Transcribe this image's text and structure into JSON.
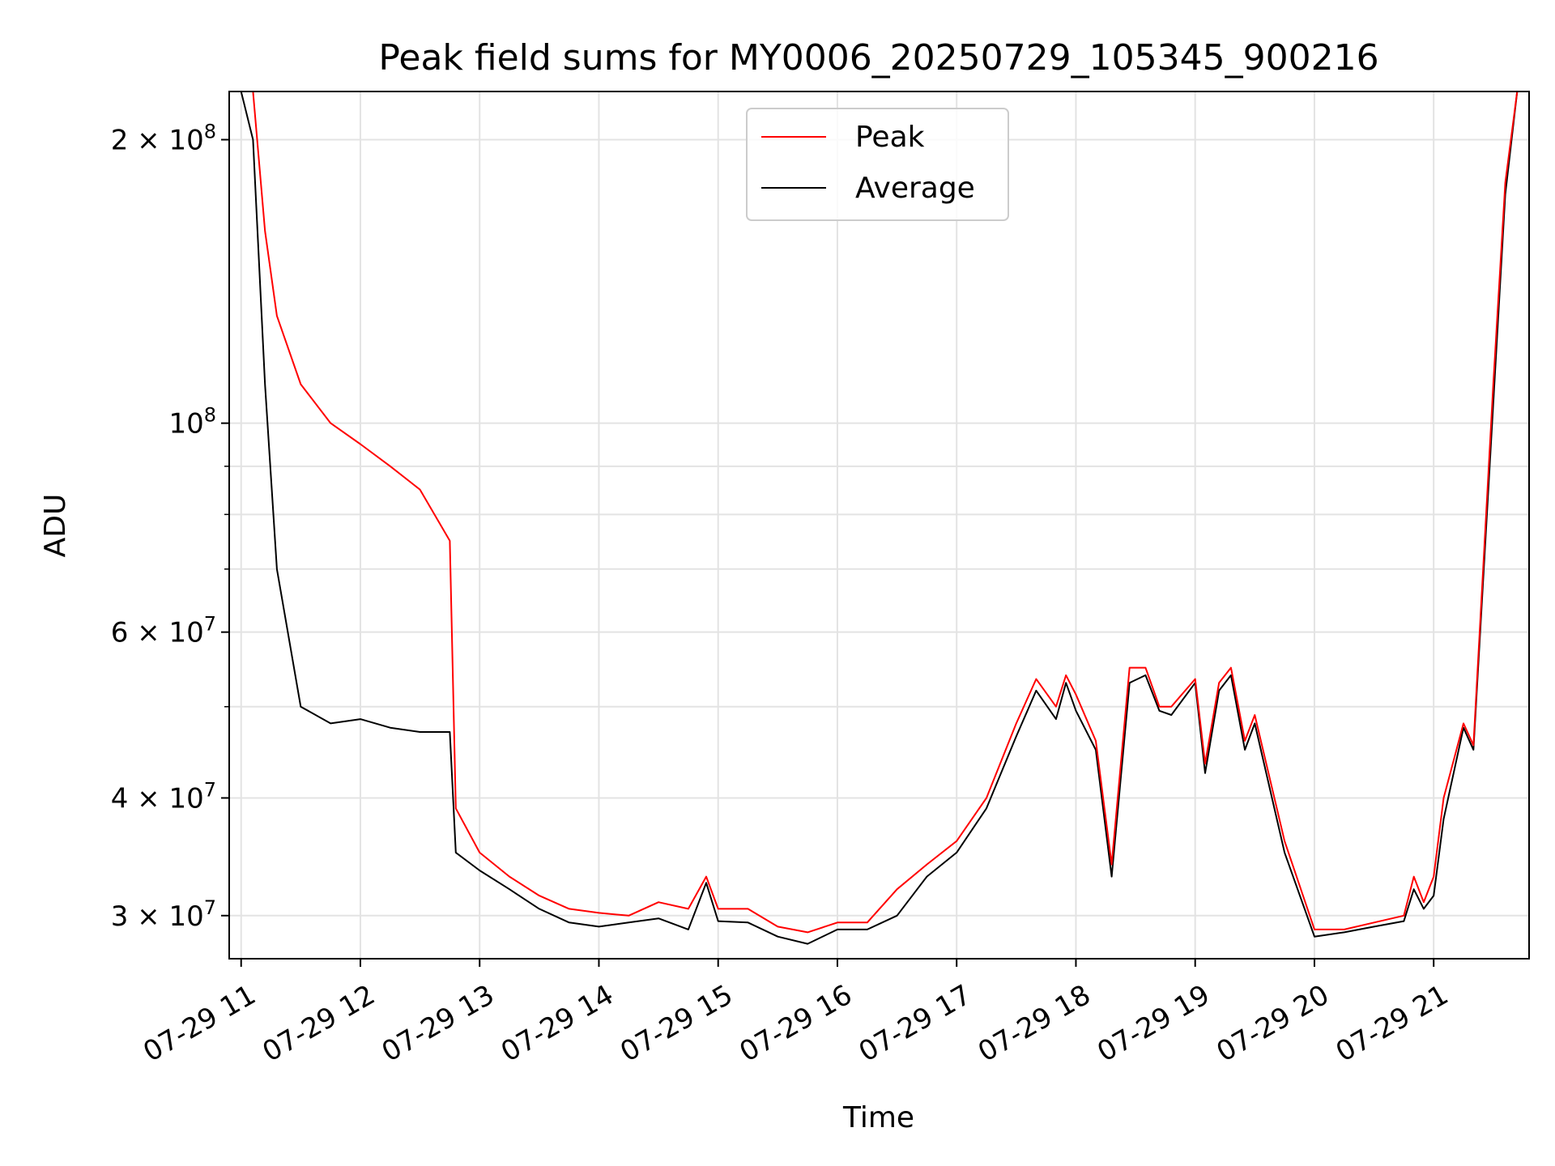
{
  "chart_data": {
    "type": "line",
    "title": "Peak field sums for MY0006_20250729_105345_900216",
    "xlabel": "Time",
    "ylabel": "ADU",
    "yscale": "log",
    "xlim": [
      "2025-07-29 10:54",
      "2025-07-29 21:48"
    ],
    "ylim": [
      27000000,
      225000000
    ],
    "grid": true,
    "legend_position": "top-center",
    "x_ticks": [
      {
        "time": "2025-07-29 11:00",
        "label": "07-29 11"
      },
      {
        "time": "2025-07-29 12:00",
        "label": "07-29 12"
      },
      {
        "time": "2025-07-29 13:00",
        "label": "07-29 13"
      },
      {
        "time": "2025-07-29 14:00",
        "label": "07-29 14"
      },
      {
        "time": "2025-07-29 15:00",
        "label": "07-29 15"
      },
      {
        "time": "2025-07-29 16:00",
        "label": "07-29 16"
      },
      {
        "time": "2025-07-29 17:00",
        "label": "07-29 17"
      },
      {
        "time": "2025-07-29 18:00",
        "label": "07-29 18"
      },
      {
        "time": "2025-07-29 19:00",
        "label": "07-29 19"
      },
      {
        "time": "2025-07-29 20:00",
        "label": "07-29 20"
      },
      {
        "time": "2025-07-29 21:00",
        "label": "07-29 21"
      }
    ],
    "y_ticks": [
      {
        "value": 30000000,
        "label_mantissa": "3 × 10",
        "label_exp": "7"
      },
      {
        "value": 40000000,
        "label_mantissa": "4 × 10",
        "label_exp": "7"
      },
      {
        "value": 60000000,
        "label_mantissa": "6 × 10",
        "label_exp": "7"
      },
      {
        "value": 100000000,
        "label_mantissa": "10",
        "label_exp": "8"
      },
      {
        "value": 200000000,
        "label_mantissa": "2 × 10",
        "label_exp": "8"
      }
    ],
    "y_minor_ticks": [
      50000000,
      70000000,
      80000000,
      90000000
    ],
    "series": [
      {
        "name": "Peak",
        "color": "#ff0000",
        "x": [
          "2025-07-29 10:54",
          "2025-07-29 11:00",
          "2025-07-29 11:06",
          "2025-07-29 11:12",
          "2025-07-29 11:18",
          "2025-07-29 11:30",
          "2025-07-29 11:45",
          "2025-07-29 12:00",
          "2025-07-29 12:15",
          "2025-07-29 12:30",
          "2025-07-29 12:45",
          "2025-07-29 12:48",
          "2025-07-29 13:00",
          "2025-07-29 13:15",
          "2025-07-29 13:30",
          "2025-07-29 13:45",
          "2025-07-29 14:00",
          "2025-07-29 14:15",
          "2025-07-29 14:30",
          "2025-07-29 14:45",
          "2025-07-29 14:54",
          "2025-07-29 15:00",
          "2025-07-29 15:15",
          "2025-07-29 15:30",
          "2025-07-29 15:45",
          "2025-07-29 16:00",
          "2025-07-29 16:15",
          "2025-07-29 16:30",
          "2025-07-29 16:45",
          "2025-07-29 17:00",
          "2025-07-29 17:15",
          "2025-07-29 17:30",
          "2025-07-29 17:40",
          "2025-07-29 17:50",
          "2025-07-29 17:55",
          "2025-07-29 18:00",
          "2025-07-29 18:10",
          "2025-07-29 18:18",
          "2025-07-29 18:27",
          "2025-07-29 18:35",
          "2025-07-29 18:42",
          "2025-07-29 18:48",
          "2025-07-29 19:00",
          "2025-07-29 19:05",
          "2025-07-29 19:12",
          "2025-07-29 19:18",
          "2025-07-29 19:25",
          "2025-07-29 19:30",
          "2025-07-29 19:45",
          "2025-07-29 20:00",
          "2025-07-29 20:15",
          "2025-07-29 20:30",
          "2025-07-29 20:45",
          "2025-07-29 20:50",
          "2025-07-29 20:55",
          "2025-07-29 21:00",
          "2025-07-29 21:05",
          "2025-07-29 21:15",
          "2025-07-29 21:20",
          "2025-07-29 21:30",
          "2025-07-29 21:36",
          "2025-07-29 21:42"
        ],
        "y": [
          225000000,
          225000000,
          225000000,
          160000000,
          130000000,
          110000000,
          100000000,
          95000000,
          90000000,
          85000000,
          75000000,
          39000000,
          35000000,
          33000000,
          31500000,
          30500000,
          30200000,
          30000000,
          31000000,
          30500000,
          33000000,
          30500000,
          30500000,
          29200000,
          28800000,
          29500000,
          29500000,
          32000000,
          34000000,
          36000000,
          40000000,
          48000000,
          53500000,
          50000000,
          54000000,
          51500000,
          46000000,
          34000000,
          55000000,
          55000000,
          50000000,
          50000000,
          53500000,
          43500000,
          53000000,
          55000000,
          46000000,
          49000000,
          36000000,
          29000000,
          29000000,
          29500000,
          30000000,
          33000000,
          31000000,
          33000000,
          40000000,
          48000000,
          45500000,
          110000000,
          180000000,
          225000000
        ]
      },
      {
        "name": "Average",
        "color": "#000000",
        "x": [
          "2025-07-29 10:54",
          "2025-07-29 11:00",
          "2025-07-29 11:06",
          "2025-07-29 11:12",
          "2025-07-29 11:18",
          "2025-07-29 11:30",
          "2025-07-29 11:45",
          "2025-07-29 12:00",
          "2025-07-29 12:15",
          "2025-07-29 12:30",
          "2025-07-29 12:45",
          "2025-07-29 12:48",
          "2025-07-29 13:00",
          "2025-07-29 13:15",
          "2025-07-29 13:30",
          "2025-07-29 13:45",
          "2025-07-29 14:00",
          "2025-07-29 14:15",
          "2025-07-29 14:30",
          "2025-07-29 14:45",
          "2025-07-29 14:54",
          "2025-07-29 15:00",
          "2025-07-29 15:15",
          "2025-07-29 15:30",
          "2025-07-29 15:45",
          "2025-07-29 16:00",
          "2025-07-29 16:15",
          "2025-07-29 16:30",
          "2025-07-29 16:45",
          "2025-07-29 17:00",
          "2025-07-29 17:15",
          "2025-07-29 17:30",
          "2025-07-29 17:40",
          "2025-07-29 17:50",
          "2025-07-29 17:55",
          "2025-07-29 18:00",
          "2025-07-29 18:10",
          "2025-07-29 18:18",
          "2025-07-29 18:27",
          "2025-07-29 18:35",
          "2025-07-29 18:42",
          "2025-07-29 18:48",
          "2025-07-29 19:00",
          "2025-07-29 19:05",
          "2025-07-29 19:12",
          "2025-07-29 19:18",
          "2025-07-29 19:25",
          "2025-07-29 19:30",
          "2025-07-29 19:45",
          "2025-07-29 20:00",
          "2025-07-29 20:15",
          "2025-07-29 20:30",
          "2025-07-29 20:45",
          "2025-07-29 20:50",
          "2025-07-29 20:55",
          "2025-07-29 21:00",
          "2025-07-29 21:05",
          "2025-07-29 21:15",
          "2025-07-29 21:20",
          "2025-07-29 21:30",
          "2025-07-29 21:36",
          "2025-07-29 21:42"
        ],
        "y": [
          225000000,
          225000000,
          200000000,
          110000000,
          70000000,
          50000000,
          48000000,
          48500000,
          47500000,
          47000000,
          47000000,
          35000000,
          33500000,
          32000000,
          30500000,
          29500000,
          29200000,
          29500000,
          29800000,
          29000000,
          32500000,
          29600000,
          29500000,
          28500000,
          28000000,
          29000000,
          29000000,
          30000000,
          33000000,
          35000000,
          39000000,
          46500000,
          52000000,
          48500000,
          53000000,
          49500000,
          45000000,
          33000000,
          53000000,
          54000000,
          49500000,
          49000000,
          53000000,
          42500000,
          52000000,
          54000000,
          45000000,
          48000000,
          35000000,
          28500000,
          28800000,
          29200000,
          29600000,
          32000000,
          30500000,
          31500000,
          38000000,
          47500000,
          45000000,
          105000000,
          175000000,
          225000000
        ]
      }
    ]
  }
}
